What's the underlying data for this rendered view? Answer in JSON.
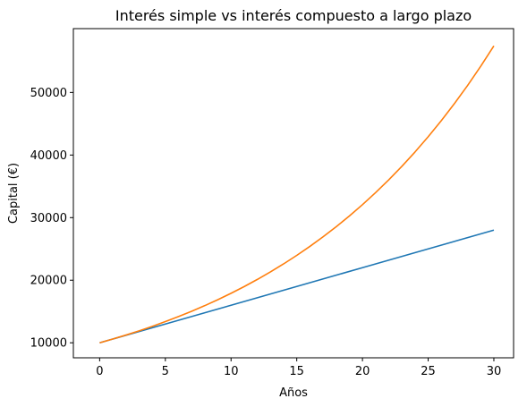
{
  "chart_data": {
    "type": "line",
    "title": "Interés simple vs interés compuesto a largo plazo",
    "xlabel": "Años",
    "ylabel": "Capital (€)",
    "xlim": [
      -2,
      31.5
    ],
    "ylim": [
      7600,
      60200
    ],
    "xticks": [
      0,
      5,
      10,
      15,
      20,
      25,
      30
    ],
    "yticks": [
      10000,
      20000,
      30000,
      40000,
      50000
    ],
    "grid": false,
    "series": [
      {
        "color": "#1f77b4",
        "x": [
          0,
          5,
          10,
          15,
          20,
          25,
          30
        ],
        "y": [
          10000,
          13000,
          16000,
          19000,
          22000,
          25000,
          28000
        ]
      },
      {
        "color": "#ff7f0e",
        "x": [
          0,
          1,
          2,
          3,
          4,
          5,
          6,
          7,
          8,
          9,
          10,
          11,
          12,
          13,
          14,
          15,
          16,
          17,
          18,
          19,
          20,
          21,
          22,
          23,
          24,
          25,
          26,
          27,
          28,
          29,
          30
        ],
        "y": [
          10000,
          10600,
          11236,
          11910,
          12625,
          13382,
          14185,
          15036,
          15938,
          16895,
          17908,
          18983,
          20122,
          21329,
          22609,
          23966,
          25404,
          26928,
          28543,
          30256,
          32071,
          33996,
          36035,
          38197,
          40489,
          42919,
          45494,
          48223,
          51117,
          54184,
          57435
        ]
      }
    ]
  }
}
